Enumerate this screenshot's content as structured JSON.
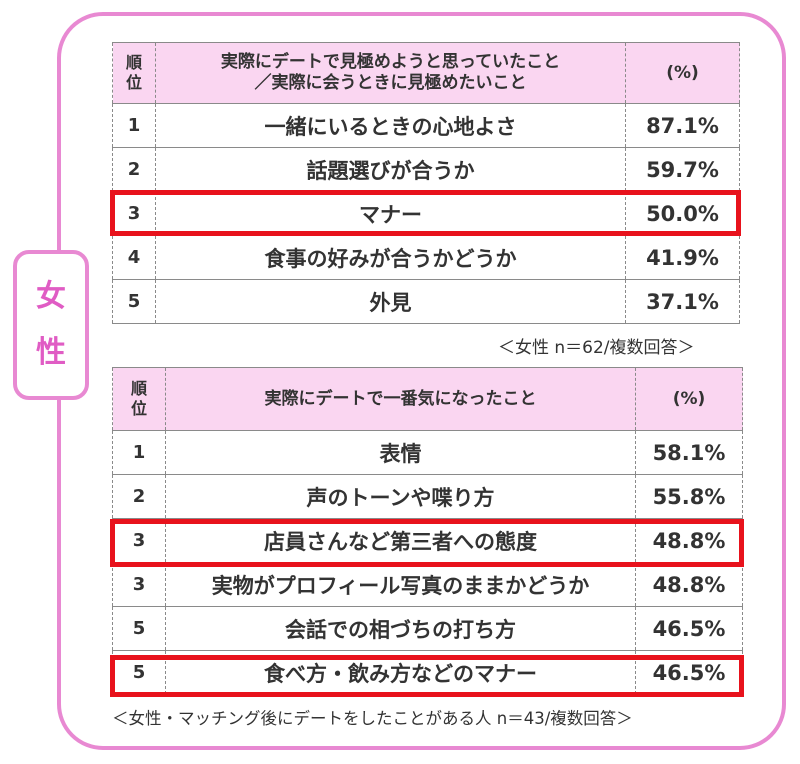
{
  "side_label": [
    "女",
    "性"
  ],
  "table1": {
    "header": {
      "rank": [
        "順",
        "位"
      ],
      "item": [
        "実際にデートで見極めようと思っていたこと",
        "／実際に会うときに見極めたいこと"
      ],
      "percent": "(%)"
    },
    "rows": [
      {
        "rank": "1",
        "item": "一緒にいるときの心地よさ",
        "percent": "87.1%",
        "highlight": false
      },
      {
        "rank": "2",
        "item": "話題選びが合うか",
        "percent": "59.7%",
        "highlight": false
      },
      {
        "rank": "3",
        "item": "マナー",
        "percent": "50.0%",
        "highlight": true
      },
      {
        "rank": "4",
        "item": "食事の好みが合うかどうか",
        "percent": "41.9%",
        "highlight": false
      },
      {
        "rank": "5",
        "item": "外見",
        "percent": "37.1%",
        "highlight": false
      }
    ],
    "note": "＜女性 n＝62/複数回答＞"
  },
  "table2": {
    "header": {
      "rank": [
        "順",
        "位"
      ],
      "item": "実際にデートで一番気になったこと",
      "percent": "(%)"
    },
    "rows": [
      {
        "rank": "1",
        "item": "表情",
        "percent": "58.1%",
        "highlight": false
      },
      {
        "rank": "2",
        "item": "声のトーンや喋り方",
        "percent": "55.8%",
        "highlight": false
      },
      {
        "rank": "3",
        "item": "店員さんなど第三者への態度",
        "percent": "48.8%",
        "highlight": true
      },
      {
        "rank": "3",
        "item": "実物がプロフィール写真のままかどうか",
        "percent": "48.8%",
        "highlight": false
      },
      {
        "rank": "5",
        "item": "会話での相づちの打ち方",
        "percent": "46.5%",
        "highlight": false
      },
      {
        "rank": "5",
        "item": "食べ方・飲み方などのマナー",
        "percent": "46.5%",
        "highlight": true
      }
    ],
    "note": "＜女性・マッチング後にデートをしたことがある人 n＝43/複数回答＞"
  },
  "colors": {
    "frame": "#e889d2",
    "side_label_text": "#e05cc4",
    "header_bg": "#fad6f1",
    "highlight": "#e8121c"
  }
}
